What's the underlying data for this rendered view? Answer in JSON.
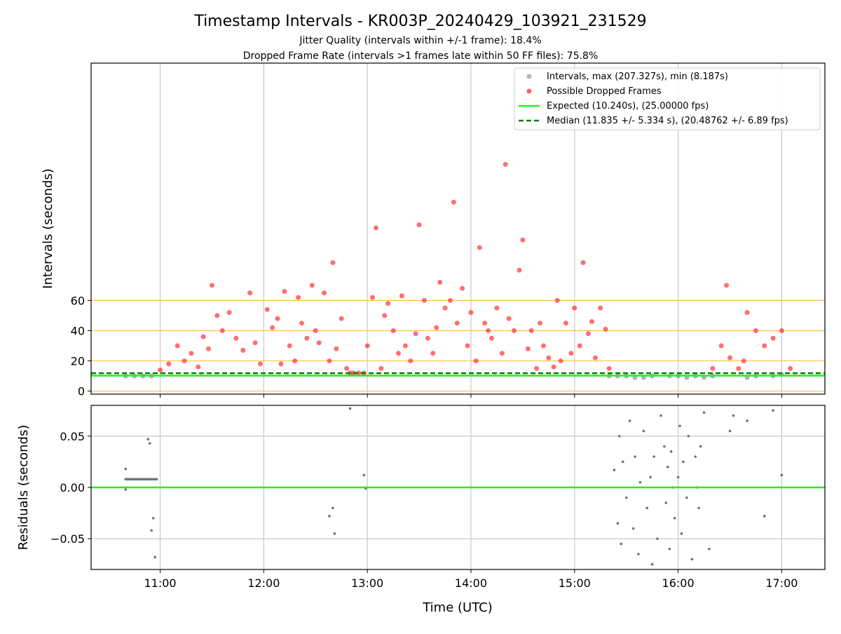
{
  "figure": {
    "title": "Timestamp Intervals - KR003P_20240429_103921_231529",
    "subtitle_1": "Jitter Quality (intervals within +/-1 frame): 18.4%",
    "subtitle_2": "Dropped Frame Rate (intervals >1 frames late within 50 FF files): 75.8%",
    "xlabel": "Time (UTC)"
  },
  "colors": {
    "expected": "#22ee22",
    "median": "#008000",
    "intervals": "#999999",
    "dropped": "#ff2222",
    "threshold": "#ffc04d",
    "residuals": "#707070",
    "grid": "#c8c8c8"
  },
  "chart_data": [
    {
      "type": "scatter",
      "ylabel": "Intervals (seconds)",
      "xlim": [
        "10:20",
        "17:25"
      ],
      "ylim": [
        -2,
        217
      ],
      "x_ticks": [
        "11:00",
        "12:00",
        "13:00",
        "14:00",
        "15:00",
        "16:00",
        "17:00"
      ],
      "y_ticks": [
        0,
        20,
        40,
        60
      ],
      "threshold_lines": [
        0,
        20,
        40,
        60
      ],
      "grid": true,
      "legend_position": "top-right",
      "legend": [
        "Intervals, max (207.327s), min (8.187s)",
        "Possible Dropped Frames",
        "Expected (10.240s), (25.00000 fps)",
        "Median (11.835 +/- 5.334 s), (20.48762 +/- 6.89 fps)"
      ],
      "reference_lines": {
        "expected": 10.24,
        "median": 11.835
      },
      "series": [
        {
          "name": "Intervals, max (207.327s), min (8.187s)",
          "x": [
            "10:40",
            "10:45",
            "10:50",
            "10:55",
            "15:20",
            "15:25",
            "15:30",
            "15:35",
            "15:40",
            "15:45",
            "15:55",
            "16:00",
            "16:05",
            "16:10",
            "16:15",
            "16:20",
            "16:40",
            "16:45",
            "16:55",
            "17:00"
          ],
          "y": [
            10,
            10,
            10,
            10,
            10,
            10,
            10,
            9,
            9,
            10,
            10,
            10,
            9,
            10,
            9,
            10,
            9,
            10,
            10,
            11
          ]
        },
        {
          "name": "Possible Dropped Frames",
          "x": [
            "11:00",
            "11:05",
            "11:10",
            "11:14",
            "11:18",
            "11:22",
            "11:25",
            "11:28",
            "11:30",
            "11:33",
            "11:36",
            "11:40",
            "11:44",
            "11:48",
            "11:52",
            "11:55",
            "11:58",
            "12:02",
            "12:05",
            "12:08",
            "12:10",
            "12:12",
            "12:15",
            "12:18",
            "12:20",
            "12:22",
            "12:25",
            "12:28",
            "12:30",
            "12:32",
            "12:35",
            "12:38",
            "12:40",
            "12:42",
            "12:45",
            "12:48",
            "12:50",
            "12:52",
            "12:55",
            "12:58",
            "13:00",
            "13:03",
            "13:05",
            "13:08",
            "13:10",
            "13:12",
            "13:15",
            "13:18",
            "13:20",
            "13:22",
            "13:25",
            "13:28",
            "13:30",
            "13:33",
            "13:35",
            "13:38",
            "13:40",
            "13:42",
            "13:45",
            "13:48",
            "13:50",
            "13:52",
            "13:55",
            "13:58",
            "14:00",
            "14:03",
            "14:05",
            "14:08",
            "14:10",
            "14:12",
            "14:15",
            "14:18",
            "14:20",
            "14:22",
            "14:25",
            "14:28",
            "14:30",
            "14:33",
            "14:35",
            "14:38",
            "14:40",
            "14:42",
            "14:45",
            "14:48",
            "14:50",
            "14:52",
            "14:55",
            "14:58",
            "15:00",
            "15:03",
            "15:05",
            "15:08",
            "15:10",
            "15:12",
            "15:15",
            "15:18",
            "15:20",
            "16:20",
            "16:25",
            "16:28",
            "16:30",
            "16:35",
            "16:38",
            "16:40",
            "16:45",
            "16:50",
            "16:55",
            "17:00",
            "17:05"
          ],
          "y": [
            14,
            18,
            30,
            20,
            25,
            16,
            36,
            28,
            70,
            50,
            40,
            52,
            35,
            27,
            65,
            32,
            18,
            54,
            42,
            48,
            18,
            66,
            30,
            20,
            62,
            45,
            35,
            70,
            40,
            32,
            65,
            20,
            85,
            28,
            48,
            15,
            12,
            12,
            12,
            12,
            30,
            62,
            108,
            15,
            50,
            58,
            40,
            25,
            63,
            30,
            20,
            38,
            110,
            60,
            35,
            25,
            42,
            72,
            55,
            60,
            125,
            45,
            68,
            30,
            52,
            20,
            95,
            45,
            40,
            35,
            55,
            25,
            150,
            48,
            40,
            80,
            100,
            28,
            40,
            15,
            45,
            30,
            22,
            16,
            60,
            20,
            45,
            25,
            55,
            30,
            85,
            38,
            46,
            22,
            55,
            41,
            15,
            15,
            30,
            70,
            22,
            15,
            20,
            52,
            40,
            30,
            35,
            40,
            15
          ]
        }
      ]
    },
    {
      "type": "scatter",
      "ylabel": "Residuals (seconds)",
      "xlim": [
        "10:20",
        "17:25"
      ],
      "ylim": [
        -0.08,
        0.08
      ],
      "y_ticks": [
        "0.05",
        "0.00",
        "−0.05"
      ],
      "x_ticks": [
        "11:00",
        "12:00",
        "13:00",
        "14:00",
        "15:00",
        "16:00",
        "17:00"
      ],
      "grid": true,
      "reference_lines": {
        "zero": 0
      },
      "series": [
        {
          "name": "Residuals",
          "x": [
            "10:40",
            "10:41",
            "10:42",
            "10:43",
            "10:44",
            "10:45",
            "10:46",
            "10:47",
            "10:48",
            "10:49",
            "10:50",
            "10:51",
            "10:52",
            "10:53",
            "10:54",
            "10:55",
            "10:56",
            "10:57",
            "10:58",
            "10:40",
            "10:40",
            "10:53",
            "10:54",
            "10:55",
            "10:56",
            "10:57",
            "12:38",
            "12:40",
            "12:41",
            "12:50",
            "12:58",
            "12:59",
            "15:23",
            "15:25",
            "15:26",
            "15:27",
            "15:28",
            "15:30",
            "15:32",
            "15:34",
            "15:35",
            "15:37",
            "15:38",
            "15:40",
            "15:42",
            "15:44",
            "15:45",
            "15:46",
            "15:48",
            "15:50",
            "15:52",
            "15:53",
            "15:54",
            "15:55",
            "15:56",
            "15:57",
            "15:58",
            "16:00",
            "16:01",
            "16:02",
            "16:03",
            "16:05",
            "16:06",
            "16:08",
            "16:10",
            "16:11",
            "16:12",
            "16:13",
            "16:15",
            "16:18",
            "16:30",
            "16:32",
            "16:40",
            "16:50",
            "16:55",
            "17:00"
          ],
          "y": [
            0.008,
            0.008,
            0.008,
            0.008,
            0.008,
            0.008,
            0.008,
            0.008,
            0.008,
            0.008,
            0.008,
            0.008,
            0.008,
            0.008,
            0.008,
            0.008,
            0.008,
            0.008,
            0.008,
            0.018,
            -0.002,
            0.047,
            0.043,
            -0.042,
            -0.03,
            -0.068,
            -0.028,
            -0.02,
            -0.045,
            0.077,
            0.012,
            -0.001,
            0.017,
            -0.035,
            0.05,
            -0.055,
            0.025,
            -0.01,
            0.065,
            -0.04,
            0.03,
            -0.065,
            0.005,
            0.055,
            -0.02,
            0.01,
            -0.075,
            0.03,
            -0.05,
            0.07,
            0.04,
            -0.015,
            0.02,
            -0.06,
            0.035,
            0.0,
            -0.03,
            0.01,
            0.06,
            -0.045,
            0.025,
            -0.01,
            0.05,
            -0.07,
            0.03,
            0.0,
            -0.02,
            0.04,
            0.073,
            -0.06,
            0.055,
            0.07,
            0.065,
            -0.028,
            0.075,
            0.012
          ]
        }
      ]
    }
  ]
}
